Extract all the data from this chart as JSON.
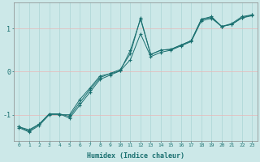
{
  "xlabel": "Humidex (Indice chaleur)",
  "xlim": [
    -0.5,
    23.5
  ],
  "ylim": [
    -1.6,
    1.6
  ],
  "yticks": [
    -1,
    0,
    1
  ],
  "xticks": [
    0,
    1,
    2,
    3,
    4,
    5,
    6,
    7,
    8,
    9,
    10,
    11,
    12,
    13,
    14,
    15,
    16,
    17,
    18,
    19,
    20,
    21,
    22,
    23
  ],
  "bg_color": "#cce8e8",
  "grid_color_x": "#aad4d4",
  "grid_color_y": "#e8b8b8",
  "line_color": "#1a7070",
  "line1_x": [
    0,
    1,
    2,
    3,
    4,
    5,
    6,
    7,
    8,
    9,
    10,
    11,
    12,
    13,
    14,
    15,
    16,
    17,
    18,
    19,
    20,
    21,
    22,
    23
  ],
  "line1_y": [
    -1.3,
    -1.4,
    -1.25,
    -1.0,
    -1.0,
    -1.0,
    -0.65,
    -0.38,
    -0.1,
    -0.05,
    0.02,
    0.5,
    1.22,
    0.4,
    0.5,
    0.52,
    0.62,
    0.72,
    1.22,
    1.28,
    1.05,
    1.1,
    1.25,
    1.32
  ],
  "line2_x": [
    0,
    1,
    2,
    3,
    4,
    5,
    6,
    7,
    8,
    9,
    10,
    11,
    12,
    13,
    14,
    15,
    16,
    17,
    18,
    19,
    20,
    21,
    22,
    23
  ],
  "line2_y": [
    -1.28,
    -1.38,
    -1.22,
    -0.98,
    -0.98,
    -1.08,
    -0.78,
    -0.48,
    -0.18,
    -0.08,
    0.02,
    0.28,
    0.88,
    0.35,
    0.45,
    0.5,
    0.6,
    0.7,
    1.18,
    1.24,
    1.05,
    1.1,
    1.25,
    1.3
  ],
  "line3_x": [
    0,
    1,
    2,
    3,
    4,
    5,
    6,
    7,
    8,
    9,
    10,
    11,
    12,
    13,
    14,
    15,
    16,
    17,
    18,
    19,
    20,
    21,
    22,
    23
  ],
  "line3_y": [
    -1.28,
    -1.35,
    -1.22,
    -0.98,
    -0.98,
    -1.04,
    -0.72,
    -0.42,
    -0.14,
    -0.04,
    0.05,
    0.42,
    1.25,
    0.4,
    0.5,
    0.52,
    0.62,
    0.72,
    1.22,
    1.26,
    1.05,
    1.12,
    1.28,
    1.32
  ]
}
